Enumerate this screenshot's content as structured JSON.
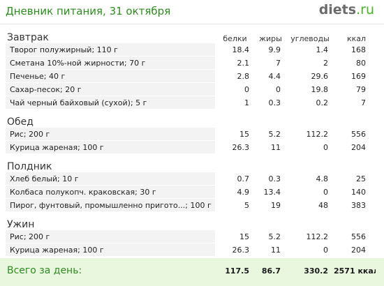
{
  "header": {
    "title": "Дневник питания, 31 октября",
    "logo_main": "diets",
    "logo_tld": ".ru"
  },
  "columns": [
    "белки",
    "жиры",
    "углеводы",
    "ккал"
  ],
  "meals": [
    {
      "name": "Завтрак",
      "items": [
        {
          "food": "Творог полужирный; 110 г",
          "protein": "18.4",
          "fat": "9.9",
          "carbs": "1.4",
          "kcal": "168"
        },
        {
          "food": "Сметана 10%-ной жирности; 70 г",
          "protein": "2.1",
          "fat": "7",
          "carbs": "2",
          "kcal": "80"
        },
        {
          "food": "Печенье; 40 г",
          "protein": "2.8",
          "fat": "4.4",
          "carbs": "29.6",
          "kcal": "169"
        },
        {
          "food": "Сахар-песок; 20 г",
          "protein": "0",
          "fat": "0",
          "carbs": "19.8",
          "kcal": "79"
        },
        {
          "food": "Чай черный байховый (сухой); 5 г",
          "protein": "1",
          "fat": "0.3",
          "carbs": "0.2",
          "kcal": "7"
        }
      ]
    },
    {
      "name": "Обед",
      "items": [
        {
          "food": "Рис; 200 г",
          "protein": "15",
          "fat": "5.2",
          "carbs": "112.2",
          "kcal": "556"
        },
        {
          "food": "Курица жареная; 100 г",
          "protein": "26.3",
          "fat": "11",
          "carbs": "0",
          "kcal": "204"
        }
      ]
    },
    {
      "name": "Полдник",
      "items": [
        {
          "food": "Хлеб белый; 10 г",
          "protein": "0.7",
          "fat": "0.3",
          "carbs": "4.8",
          "kcal": "25"
        },
        {
          "food": "Колбаса полукопч. краковская; 30 г",
          "protein": "4.9",
          "fat": "13.4",
          "carbs": "0",
          "kcal": "140"
        },
        {
          "food": "Пирог, фунтовый, промышленно пригото...; 100 г",
          "protein": "5",
          "fat": "19",
          "carbs": "48",
          "kcal": "383"
        }
      ]
    },
    {
      "name": "Ужин",
      "items": [
        {
          "food": "Рис; 200 г",
          "protein": "15",
          "fat": "5.2",
          "carbs": "112.2",
          "kcal": "556"
        },
        {
          "food": "Курица жареная; 100 г",
          "protein": "26.3",
          "fat": "11",
          "carbs": "0",
          "kcal": "204"
        }
      ]
    }
  ],
  "totals": {
    "label": "Всего за день:",
    "protein": "117.5",
    "fat": "86.7",
    "carbs": "330.2",
    "kcal": "2571 ккал"
  }
}
